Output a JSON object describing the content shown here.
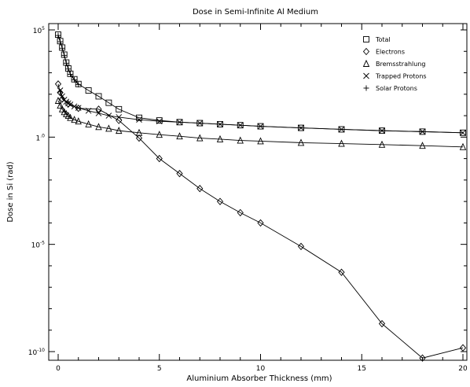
{
  "chart_data": {
    "type": "line",
    "title": "Dose in Semi-Infinite Al Medium",
    "xlabel": "Aluminium Absorber Thickness (mm)",
    "ylabel": "Dose in Si (rad)",
    "xlim": [
      0,
      20
    ],
    "ylim": [
      1e-10,
      100000.0
    ],
    "yscale": "log",
    "grid": false,
    "legend_position": "top-right",
    "x_ticks": [
      "0",
      "5",
      "10",
      "15",
      "20"
    ],
    "y_ticks": [
      {
        "base": "10",
        "exp": "5",
        "value": 100000
      },
      {
        "base": "1",
        "exp": ".0",
        "value": 1
      },
      {
        "base": "10",
        "exp": "-5",
        "value": 1e-05
      },
      {
        "base": "10",
        "exp": "-10",
        "value": 1e-10
      }
    ],
    "series": [
      {
        "name": "Total",
        "marker": "square",
        "x": [
          0,
          0.1,
          0.2,
          0.3,
          0.4,
          0.5,
          0.6,
          0.8,
          1,
          1.5,
          2,
          2.5,
          3,
          4,
          5,
          6,
          7,
          8,
          9,
          10,
          12,
          14,
          16,
          18,
          20
        ],
        "y": [
          60000,
          30000,
          15000,
          7000,
          3000,
          1600,
          900,
          500,
          300,
          150,
          80,
          40,
          20,
          8,
          6,
          5,
          4.5,
          4,
          3.6,
          3.2,
          2.7,
          2.3,
          2,
          1.8,
          1.6
        ]
      },
      {
        "name": "Electrons",
        "marker": "diamond",
        "x": [
          0,
          0.1,
          0.2,
          0.5,
          1,
          2,
          3,
          4,
          5,
          6,
          7,
          8,
          9,
          10,
          12,
          14,
          16,
          18,
          20
        ],
        "y": [
          300,
          120,
          60,
          35,
          22,
          20,
          6,
          0.9,
          0.1,
          0.02,
          0.004,
          0.001,
          0.0003,
          0.0001,
          8e-06,
          5e-07,
          2e-09,
          5e-11,
          1.5e-10
        ]
      },
      {
        "name": "Bremsstrahlung",
        "marker": "triangle",
        "x": [
          0,
          0.1,
          0.2,
          0.3,
          0.4,
          0.5,
          0.6,
          0.8,
          1,
          1.5,
          2,
          2.5,
          3,
          4,
          5,
          6,
          7,
          8,
          9,
          10,
          12,
          14,
          16,
          18,
          20
        ],
        "y": [
          50,
          30,
          20,
          15,
          12,
          10,
          8,
          6.5,
          5.5,
          4,
          3,
          2.5,
          2,
          1.6,
          1.3,
          1.1,
          0.9,
          0.8,
          0.7,
          0.65,
          0.55,
          0.5,
          0.45,
          0.4,
          0.35
        ]
      },
      {
        "name": "Trapped Protons",
        "marker": "x",
        "x": [
          0.1,
          0.2,
          0.3,
          0.4,
          0.5,
          0.6,
          0.8,
          1,
          1.5,
          2,
          2.5,
          3,
          4,
          5,
          6,
          7,
          8,
          9,
          10,
          12,
          14,
          16,
          18,
          20
        ],
        "y": [
          150,
          80,
          55,
          45,
          38,
          33,
          27,
          23,
          17,
          13,
          10,
          8.5,
          6.5,
          5.5,
          5,
          4.5,
          4,
          3.6,
          3.2,
          2.7,
          2.3,
          2,
          1.8,
          1.6
        ]
      },
      {
        "name": "Solar Protons",
        "marker": "plus",
        "x": [
          0,
          0.1,
          0.2,
          0.3,
          0.4,
          0.5,
          0.6,
          0.8,
          1
        ],
        "y": [
          55000,
          28000,
          14000,
          6500,
          2800,
          1500,
          850,
          470,
          280
        ]
      }
    ]
  }
}
